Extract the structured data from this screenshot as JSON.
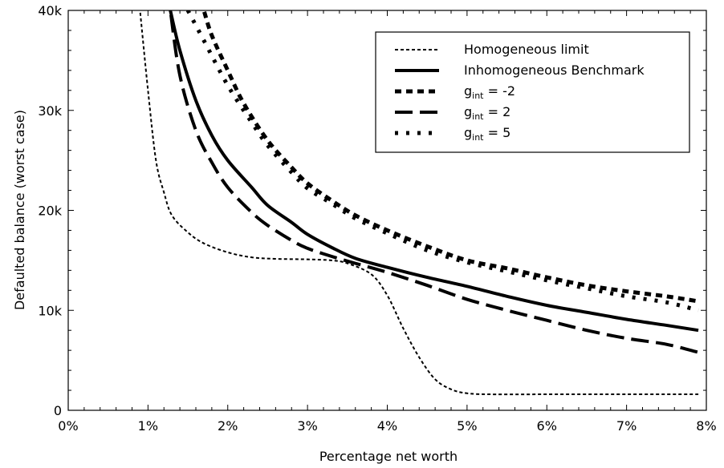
{
  "chart_data": {
    "type": "line",
    "title": "",
    "xlabel": "Percentage net worth",
    "ylabel": "Defaulted balance (worst case)",
    "xlim": [
      0,
      8
    ],
    "ylim": [
      0,
      40000
    ],
    "x_ticks": [
      0,
      1,
      2,
      3,
      4,
      5,
      6,
      7,
      8
    ],
    "x_tick_labels": [
      "0%",
      "1%",
      "2%",
      "3%",
      "4%",
      "5%",
      "6%",
      "7%",
      "8%"
    ],
    "y_ticks": [
      0,
      10000,
      20000,
      30000,
      40000
    ],
    "y_tick_labels": [
      "0",
      "10k",
      "20k",
      "30k",
      "40k"
    ],
    "grid": false,
    "legend_position": "top-right",
    "series": [
      {
        "name": "Homogeneous limit",
        "legend_parts": [
          "Homogeneous limit"
        ],
        "style": "short-dash",
        "points": [
          [
            0.9,
            40000
          ],
          [
            1.0,
            32000
          ],
          [
            1.1,
            25000
          ],
          [
            1.2,
            21800
          ],
          [
            1.3,
            19500
          ],
          [
            1.5,
            17800
          ],
          [
            1.7,
            16700
          ],
          [
            2.0,
            15800
          ],
          [
            2.3,
            15300
          ],
          [
            2.6,
            15150
          ],
          [
            3.0,
            15100
          ],
          [
            3.3,
            15000
          ],
          [
            3.5,
            14700
          ],
          [
            3.8,
            13600
          ],
          [
            4.0,
            11500
          ],
          [
            4.2,
            8200
          ],
          [
            4.4,
            5300
          ],
          [
            4.6,
            3100
          ],
          [
            4.8,
            2100
          ],
          [
            5.0,
            1700
          ],
          [
            5.3,
            1600
          ],
          [
            6.0,
            1600
          ],
          [
            7.0,
            1600
          ],
          [
            7.9,
            1600
          ]
        ]
      },
      {
        "name": "Inhomogeneous Benchmark",
        "legend_parts": [
          "Inhomogeneous Benchmark"
        ],
        "style": "solid",
        "points": [
          [
            1.28,
            40000
          ],
          [
            1.4,
            36000
          ],
          [
            1.6,
            31000
          ],
          [
            1.8,
            27500
          ],
          [
            2.0,
            25000
          ],
          [
            2.3,
            22300
          ],
          [
            2.5,
            20500
          ],
          [
            2.8,
            18800
          ],
          [
            3.0,
            17600
          ],
          [
            3.3,
            16300
          ],
          [
            3.6,
            15200
          ],
          [
            4.0,
            14300
          ],
          [
            4.5,
            13300
          ],
          [
            5.0,
            12400
          ],
          [
            5.5,
            11400
          ],
          [
            6.0,
            10500
          ],
          [
            6.5,
            9800
          ],
          [
            7.0,
            9100
          ],
          [
            7.5,
            8500
          ],
          [
            7.9,
            8000
          ]
        ]
      },
      {
        "name": "g_int = -2",
        "legend_parts": [
          "g",
          "int",
          " = -2"
        ],
        "style": "dash",
        "points": [
          [
            1.7,
            40000
          ],
          [
            1.8,
            37500
          ],
          [
            2.0,
            34000
          ],
          [
            2.2,
            30700
          ],
          [
            2.5,
            27000
          ],
          [
            2.8,
            24300
          ],
          [
            3.0,
            22700
          ],
          [
            3.3,
            21000
          ],
          [
            3.6,
            19500
          ],
          [
            4.0,
            18000
          ],
          [
            4.5,
            16400
          ],
          [
            5.0,
            15000
          ],
          [
            5.5,
            14200
          ],
          [
            6.0,
            13300
          ],
          [
            6.5,
            12500
          ],
          [
            7.0,
            11900
          ],
          [
            7.5,
            11400
          ],
          [
            7.9,
            10900
          ]
        ]
      },
      {
        "name": "g_int = 2",
        "legend_parts": [
          "g",
          "int",
          " = 2"
        ],
        "style": "long-dash",
        "points": [
          [
            1.28,
            40000
          ],
          [
            1.4,
            33500
          ],
          [
            1.6,
            28000
          ],
          [
            1.8,
            24800
          ],
          [
            2.0,
            22300
          ],
          [
            2.3,
            19800
          ],
          [
            2.5,
            18500
          ],
          [
            2.8,
            17000
          ],
          [
            3.0,
            16200
          ],
          [
            3.3,
            15400
          ],
          [
            3.6,
            14700
          ],
          [
            4.0,
            13800
          ],
          [
            4.5,
            12500
          ],
          [
            5.0,
            11100
          ],
          [
            5.5,
            10000
          ],
          [
            6.0,
            9000
          ],
          [
            6.5,
            8000
          ],
          [
            7.0,
            7200
          ],
          [
            7.5,
            6600
          ],
          [
            7.9,
            5800
          ]
        ]
      },
      {
        "name": "g_int = 5",
        "legend_parts": [
          "g",
          "int",
          " = 5"
        ],
        "style": "dot",
        "points": [
          [
            1.5,
            40000
          ],
          [
            1.7,
            37000
          ],
          [
            2.0,
            32500
          ],
          [
            2.3,
            28800
          ],
          [
            2.5,
            26500
          ],
          [
            2.8,
            23800
          ],
          [
            3.0,
            22200
          ],
          [
            3.3,
            20700
          ],
          [
            3.6,
            19200
          ],
          [
            4.0,
            17700
          ],
          [
            4.5,
            16000
          ],
          [
            5.0,
            14800
          ],
          [
            5.5,
            13900
          ],
          [
            6.0,
            13000
          ],
          [
            6.5,
            12200
          ],
          [
            7.0,
            11400
          ],
          [
            7.5,
            10800
          ],
          [
            7.9,
            10000
          ]
        ]
      }
    ]
  }
}
